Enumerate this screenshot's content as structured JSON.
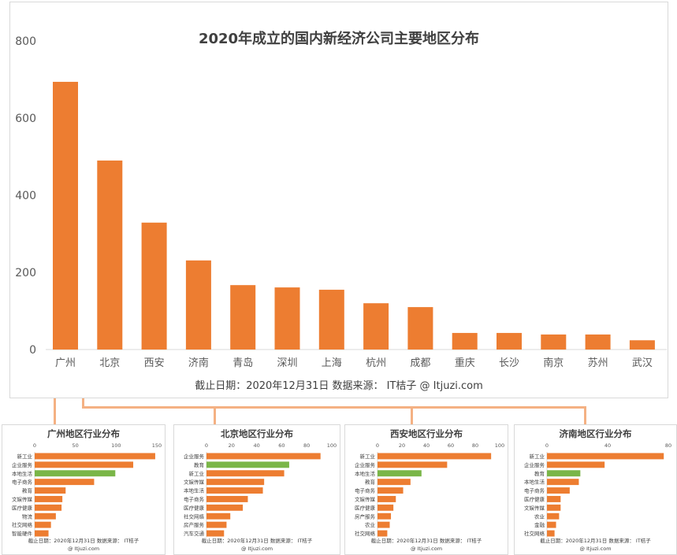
{
  "colors": {
    "bar": "#ed7d31",
    "highlight": "#7ab648",
    "axis": "#d9d9d9",
    "connector": "#f4b183"
  },
  "chart_data": [
    {
      "type": "bar",
      "title": "2020年成立的国内新经济公司主要地区分布",
      "categories": [
        "广州",
        "北京",
        "西安",
        "济南",
        "青岛",
        "深圳",
        "上海",
        "杭州",
        "成都",
        "重庆",
        "长沙",
        "南京",
        "苏州",
        "武汉"
      ],
      "values": [
        694,
        490,
        329,
        231,
        167,
        161,
        155,
        120,
        110,
        43,
        43,
        39,
        39,
        24
      ],
      "ylim": [
        0,
        800
      ],
      "yticks": [
        0,
        200,
        400,
        600,
        800
      ],
      "footer": "截止日期：2020年12月31日     数据来源： IT桔子 @ Itjuzi.com"
    },
    {
      "type": "bar",
      "orientation": "horizontal",
      "title": "广州地区行业分布",
      "categories": [
        "新工业",
        "企业服务",
        "本地生活",
        "电子商务",
        "教育",
        "文娱传媒",
        "医疗健康",
        "物流",
        "社交网络",
        "智能硬件"
      ],
      "values": [
        148,
        121,
        99,
        73,
        38,
        34,
        33,
        26,
        20,
        17
      ],
      "highlight": "本地生活",
      "xlim": [
        0,
        150
      ],
      "xticks": [
        0,
        50,
        100,
        150
      ],
      "footer1": "截止日期：2020年12月31日    数据来源： IT桔子",
      "footer2": "@ Itjuzi.com"
    },
    {
      "type": "bar",
      "orientation": "horizontal",
      "title": "北京地区行业分布",
      "categories": [
        "企业服务",
        "教育",
        "新工业",
        "文娱传媒",
        "本地生活",
        "电子商务",
        "医疗健康",
        "社交网络",
        "房产服务",
        "汽车交通"
      ],
      "values": [
        91,
        66,
        62,
        46,
        45,
        33,
        29,
        19,
        16,
        14
      ],
      "highlight": "教育",
      "xlim": [
        0,
        100
      ],
      "xticks": [
        0,
        20,
        40,
        60,
        80,
        100
      ],
      "footer1": "截止日期：2020年12月31日    数据来源： IT桔子",
      "footer2": "@ Itjuzi.com"
    },
    {
      "type": "bar",
      "orientation": "horizontal",
      "title": "西安地区行业分布",
      "categories": [
        "新工业",
        "企业服务",
        "本地生活",
        "教育",
        "电子商务",
        "文娱传媒",
        "医疗健康",
        "房产服务",
        "农业",
        "社交网络"
      ],
      "values": [
        93,
        57,
        36,
        27,
        21,
        15,
        13,
        11,
        10,
        8
      ],
      "highlight": "本地生活",
      "xlim": [
        0,
        100
      ],
      "xticks": [
        0,
        20,
        40,
        60,
        80,
        100
      ],
      "footer1": "截止日期：2020年12月31日    数据来源： IT桔子",
      "footer2": "@ Itjuzi.com"
    },
    {
      "type": "bar",
      "orientation": "horizontal",
      "title": "济南地区行业分布",
      "categories": [
        "新工业",
        "企业服务",
        "教育",
        "本地生活",
        "电子商务",
        "医疗健康",
        "文娱传媒",
        "农业",
        "金融",
        "社交网络"
      ],
      "values": [
        77,
        38,
        22,
        21,
        15,
        9,
        9,
        8,
        6,
        5
      ],
      "highlight": "教育",
      "xlim": [
        0,
        80
      ],
      "xticks": [
        0,
        40,
        80
      ],
      "footer1": "截止日期：2020年12月31日    数据来源： IT桔子",
      "footer2": "@ Itjuzi.com"
    }
  ]
}
